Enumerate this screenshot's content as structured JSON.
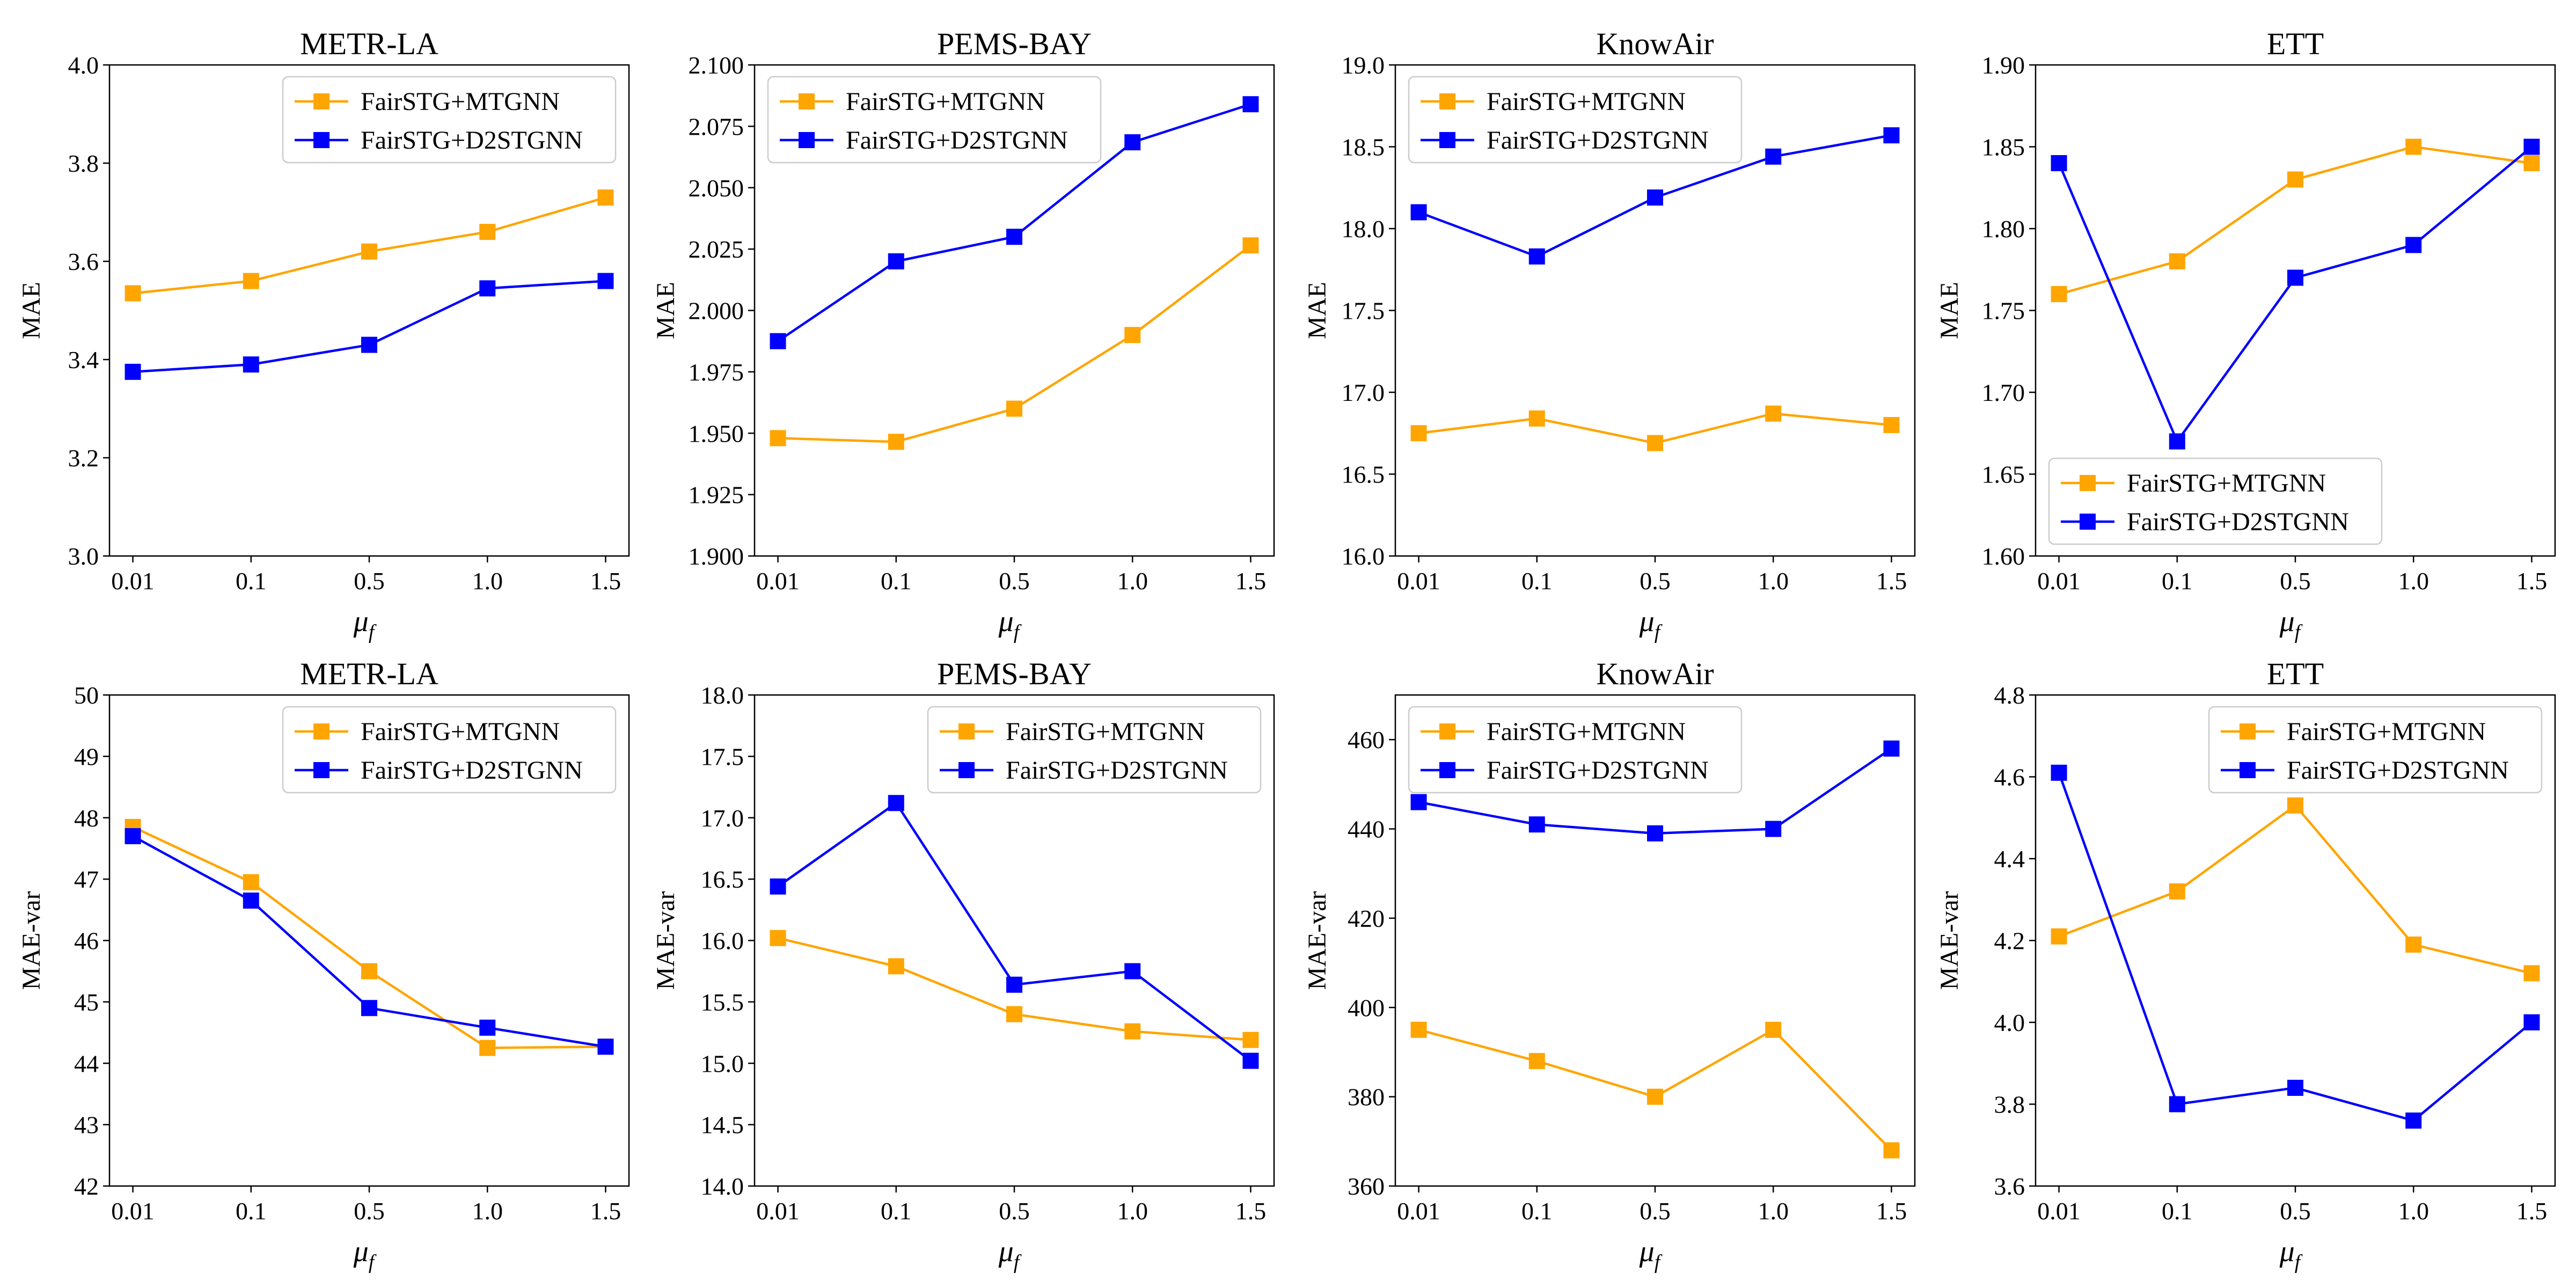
{
  "colors": {
    "mtgnn": "#FFA500",
    "d2stgnn": "#0000FF"
  },
  "chart_data": [
    {
      "type": "line",
      "title": "METR-LA",
      "ylabel": "MAE",
      "xlabel": "μ",
      "xlabel_sub": "f",
      "categories": [
        "0.01",
        "0.1",
        "0.5",
        "1.0",
        "1.5"
      ],
      "ylim": [
        3.0,
        4.0
      ],
      "yticks": [
        "3.0",
        "3.2",
        "3.4",
        "3.6",
        "3.8",
        "4.0"
      ],
      "legend": "top-right",
      "grid": false,
      "series": [
        {
          "name": "FairSTG+MTGNN",
          "color": "#FFA500",
          "values": [
            3.535,
            3.56,
            3.62,
            3.66,
            3.73
          ]
        },
        {
          "name": "FairSTG+D2STGNN",
          "color": "#0000FF",
          "values": [
            3.375,
            3.39,
            3.43,
            3.545,
            3.56
          ]
        }
      ]
    },
    {
      "type": "line",
      "title": "PEMS-BAY",
      "ylabel": "MAE",
      "xlabel": "μ",
      "xlabel_sub": "f",
      "categories": [
        "0.01",
        "0.1",
        "0.5",
        "1.0",
        "1.5"
      ],
      "ylim": [
        1.9,
        2.1
      ],
      "yticks": [
        "1.900",
        "1.925",
        "1.950",
        "1.975",
        "2.000",
        "2.025",
        "2.050",
        "2.075",
        "2.100"
      ],
      "legend": "top-left",
      "grid": false,
      "series": [
        {
          "name": "FairSTG+MTGNN",
          "color": "#FFA500",
          "values": [
            1.948,
            1.9465,
            1.96,
            1.99,
            2.0265
          ]
        },
        {
          "name": "FairSTG+D2STGNN",
          "color": "#0000FF",
          "values": [
            1.9875,
            2.02,
            2.03,
            2.0685,
            2.084
          ]
        }
      ]
    },
    {
      "type": "line",
      "title": "KnowAir",
      "ylabel": "MAE",
      "xlabel": "μ",
      "xlabel_sub": "f",
      "categories": [
        "0.01",
        "0.1",
        "0.5",
        "1.0",
        "1.5"
      ],
      "ylim": [
        16.0,
        19.0
      ],
      "yticks": [
        "16.0",
        "16.5",
        "17.0",
        "17.5",
        "18.0",
        "18.5",
        "19.0"
      ],
      "legend": "top-left",
      "grid": false,
      "series": [
        {
          "name": "FairSTG+MTGNN",
          "color": "#FFA500",
          "values": [
            16.75,
            16.84,
            16.69,
            16.87,
            16.8
          ]
        },
        {
          "name": "FairSTG+D2STGNN",
          "color": "#0000FF",
          "values": [
            18.1,
            17.83,
            18.19,
            18.44,
            18.57
          ]
        }
      ]
    },
    {
      "type": "line",
      "title": "ETT",
      "ylabel": "MAE",
      "xlabel": "μ",
      "xlabel_sub": "f",
      "categories": [
        "0.01",
        "0.1",
        "0.5",
        "1.0",
        "1.5"
      ],
      "ylim": [
        1.6,
        1.9
      ],
      "yticks": [
        "1.60",
        "1.65",
        "1.70",
        "1.75",
        "1.80",
        "1.85",
        "1.90"
      ],
      "legend": "bottom-left",
      "grid": false,
      "series": [
        {
          "name": "FairSTG+MTGNN",
          "color": "#FFA500",
          "values": [
            1.76,
            1.78,
            1.83,
            1.85,
            1.84
          ]
        },
        {
          "name": "FairSTG+D2STGNN",
          "color": "#0000FF",
          "values": [
            1.84,
            1.67,
            1.77,
            1.79,
            1.85
          ]
        }
      ]
    },
    {
      "type": "line",
      "title": "METR-LA",
      "ylabel": "MAE-var",
      "xlabel": "μ",
      "xlabel_sub": "f",
      "categories": [
        "0.01",
        "0.1",
        "0.5",
        "1.0",
        "1.5"
      ],
      "ylim": [
        42,
        50
      ],
      "yticks": [
        "42",
        "43",
        "44",
        "45",
        "46",
        "47",
        "48",
        "49",
        "50"
      ],
      "legend": "top-right",
      "grid": false,
      "series": [
        {
          "name": "FairSTG+MTGNN",
          "color": "#FFA500",
          "values": [
            47.85,
            46.95,
            45.5,
            44.25,
            44.27
          ]
        },
        {
          "name": "FairSTG+D2STGNN",
          "color": "#0000FF",
          "values": [
            47.7,
            46.65,
            44.9,
            44.58,
            44.27
          ]
        }
      ]
    },
    {
      "type": "line",
      "title": "PEMS-BAY",
      "ylabel": "MAE-var",
      "xlabel": "μ",
      "xlabel_sub": "f",
      "categories": [
        "0.01",
        "0.1",
        "0.5",
        "1.0",
        "1.5"
      ],
      "ylim": [
        14.0,
        18.0
      ],
      "yticks": [
        "14.0",
        "14.5",
        "15.0",
        "15.5",
        "16.0",
        "16.5",
        "17.0",
        "17.5",
        "18.0"
      ],
      "legend": "top-right",
      "grid": false,
      "series": [
        {
          "name": "FairSTG+MTGNN",
          "color": "#FFA500",
          "values": [
            16.02,
            15.79,
            15.4,
            15.26,
            15.19
          ]
        },
        {
          "name": "FairSTG+D2STGNN",
          "color": "#0000FF",
          "values": [
            16.44,
            17.12,
            15.64,
            15.75,
            15.02
          ]
        }
      ]
    },
    {
      "type": "line",
      "title": "KnowAir",
      "ylabel": "MAE-var",
      "xlabel": "μ",
      "xlabel_sub": "f",
      "categories": [
        "0.01",
        "0.1",
        "0.5",
        "1.0",
        "1.5"
      ],
      "ylim": [
        360,
        470
      ],
      "yticks": [
        "360",
        "380",
        "400",
        "420",
        "440",
        "460"
      ],
      "legend": "top-left",
      "grid": false,
      "series": [
        {
          "name": "FairSTG+MTGNN",
          "color": "#FFA500",
          "values": [
            395,
            388,
            380,
            395,
            368
          ]
        },
        {
          "name": "FairSTG+D2STGNN",
          "color": "#0000FF",
          "values": [
            446,
            441,
            439,
            440,
            458
          ]
        }
      ]
    },
    {
      "type": "line",
      "title": "ETT",
      "ylabel": "MAE-var",
      "xlabel": "μ",
      "xlabel_sub": "f",
      "categories": [
        "0.01",
        "0.1",
        "0.5",
        "1.0",
        "1.5"
      ],
      "ylim": [
        3.6,
        4.8
      ],
      "yticks": [
        "3.6",
        "3.8",
        "4.0",
        "4.2",
        "4.4",
        "4.6",
        "4.8"
      ],
      "legend": "top-right",
      "grid": false,
      "series": [
        {
          "name": "FairSTG+MTGNN",
          "color": "#FFA500",
          "values": [
            4.21,
            4.32,
            4.53,
            4.19,
            4.12
          ]
        },
        {
          "name": "FairSTG+D2STGNN",
          "color": "#0000FF",
          "values": [
            4.61,
            3.8,
            3.84,
            3.76,
            4.0
          ]
        }
      ]
    }
  ]
}
